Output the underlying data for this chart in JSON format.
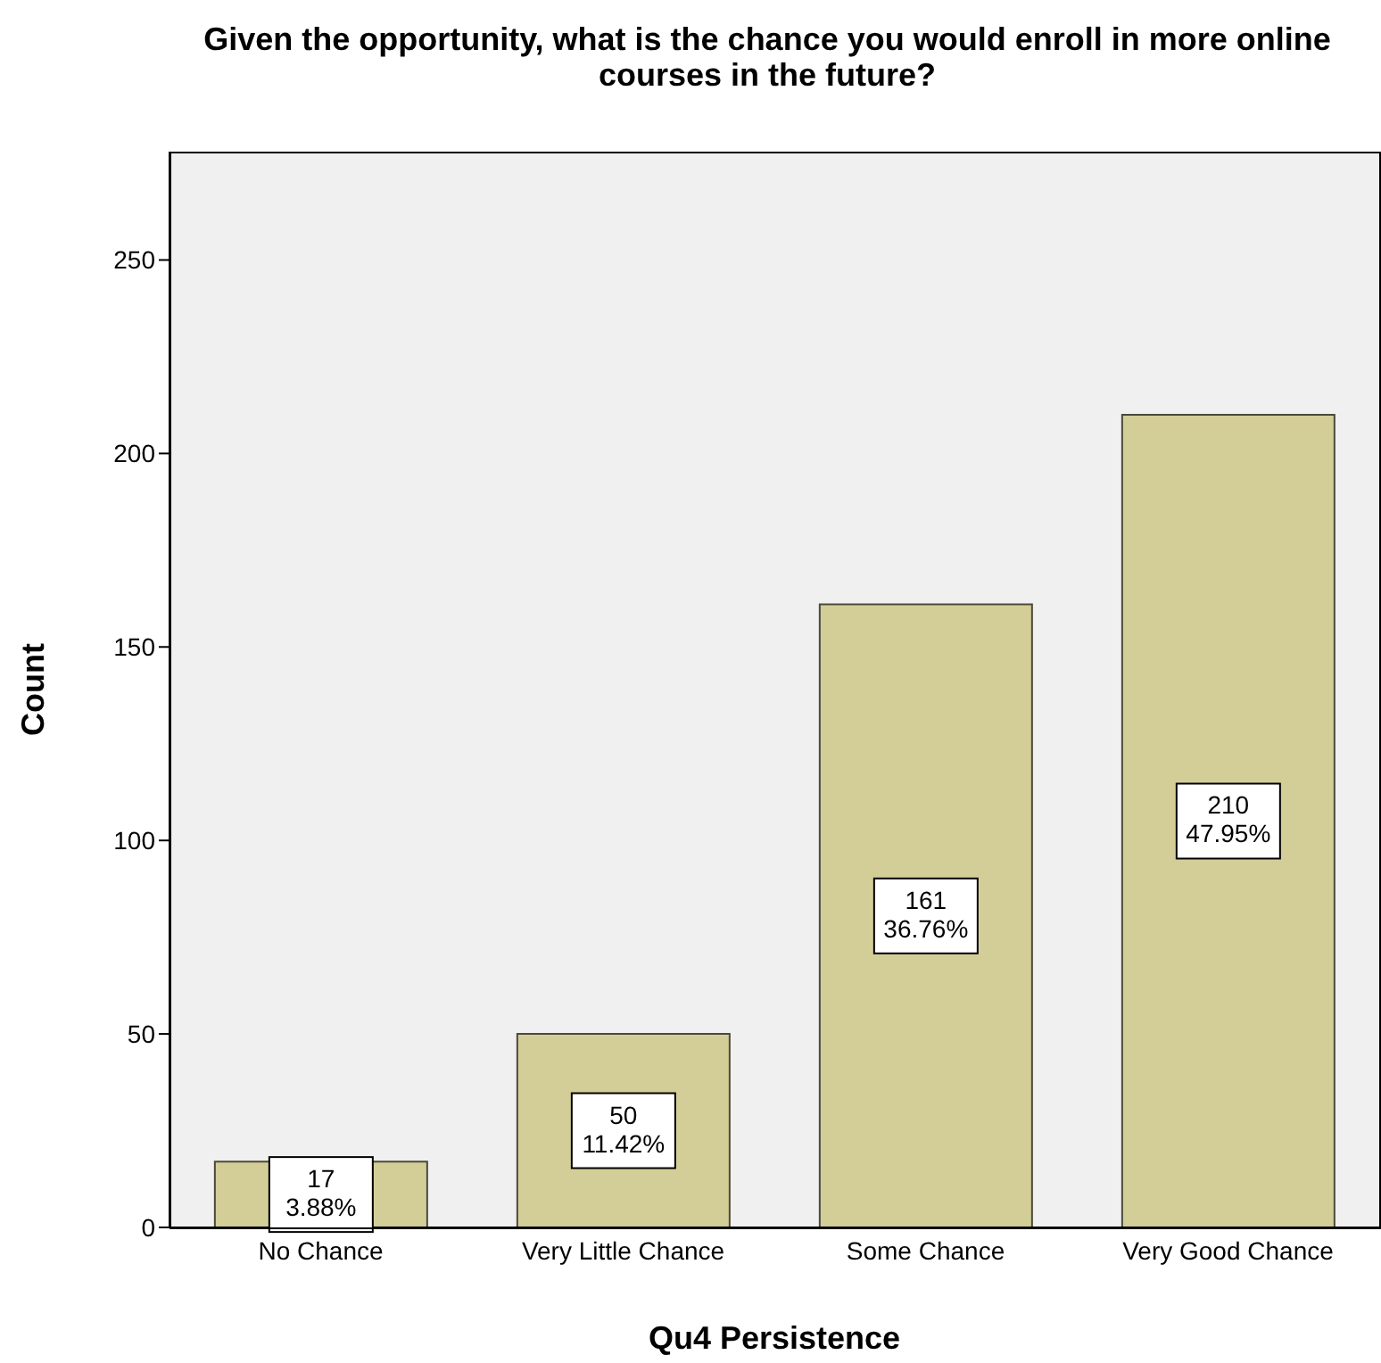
{
  "chart_data": {
    "type": "bar",
    "title": "Given the opportunity, what is the chance you would enroll in more online courses in the future?",
    "xlabel": "Qu4 Persistence",
    "ylabel": "Count",
    "categories": [
      "No Chance",
      "Very Little Chance",
      "Some Chance",
      "Very Good Chance"
    ],
    "values": [
      17,
      50,
      161,
      210
    ],
    "color": "#d3ce97",
    "value_labels": [
      "17\n3.88%",
      "50\n11.42%",
      "161\n36.76%",
      "210\n47.95%"
    ],
    "ylim": [
      0,
      278
    ],
    "yticks": [
      0,
      50,
      100,
      150,
      200,
      250
    ],
    "grid": false
  }
}
